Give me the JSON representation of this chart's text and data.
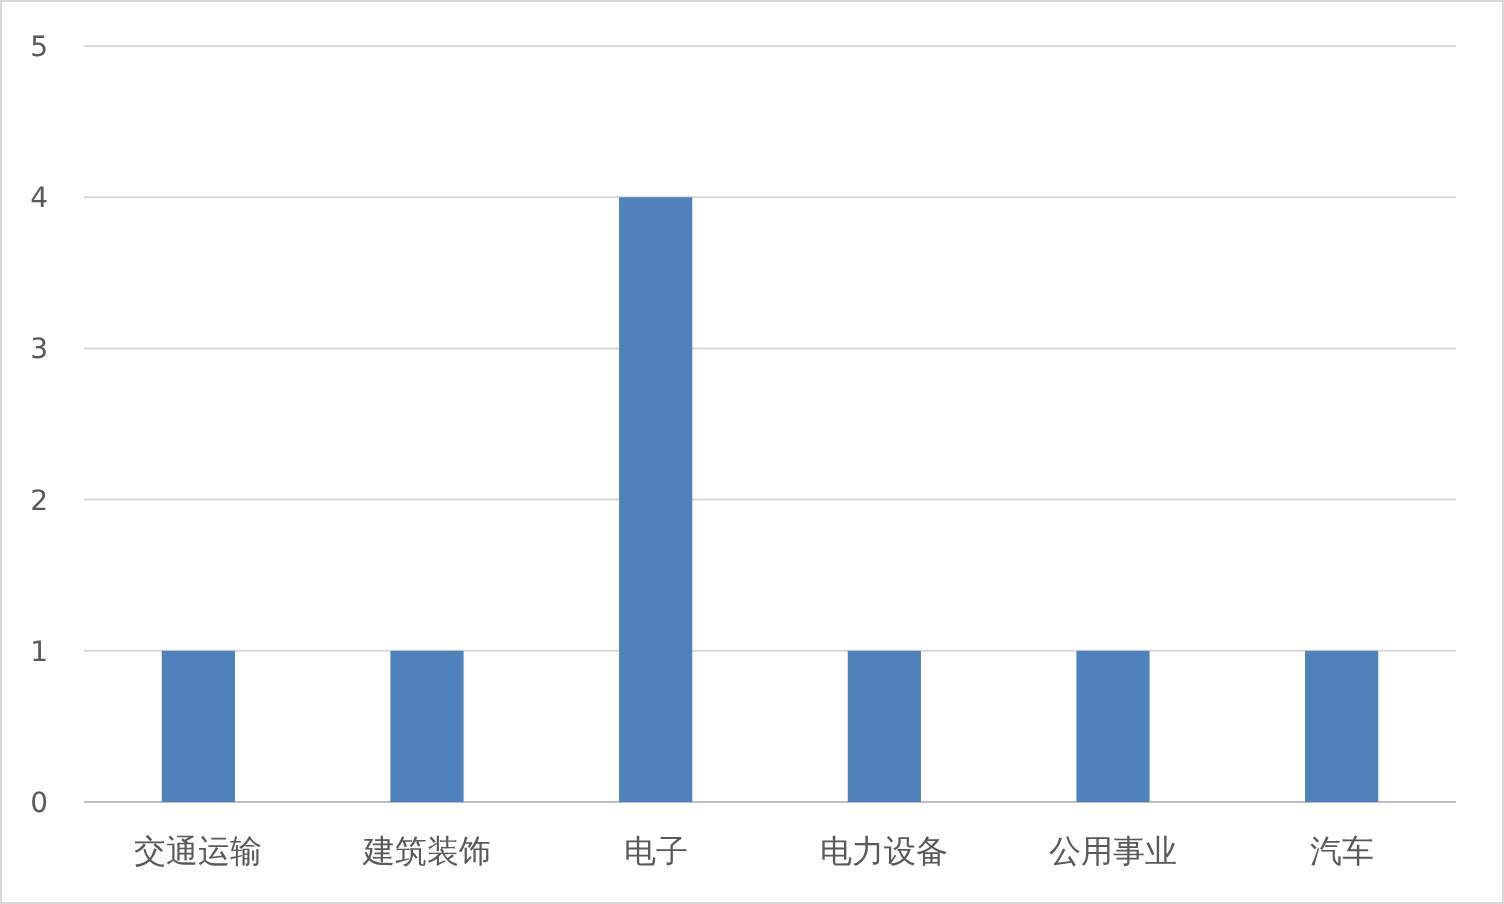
{
  "chart_data": {
    "type": "bar",
    "categories": [
      "交通运输",
      "建筑装饰",
      "电子",
      "电力设备",
      "公用事业",
      "汽车"
    ],
    "values": [
      1,
      1,
      4,
      1,
      1,
      1
    ],
    "color": "#4f81bd",
    "ylim": [
      0,
      5
    ],
    "yticks": [
      0,
      1,
      2,
      3,
      4,
      5
    ],
    "grid": "y"
  }
}
